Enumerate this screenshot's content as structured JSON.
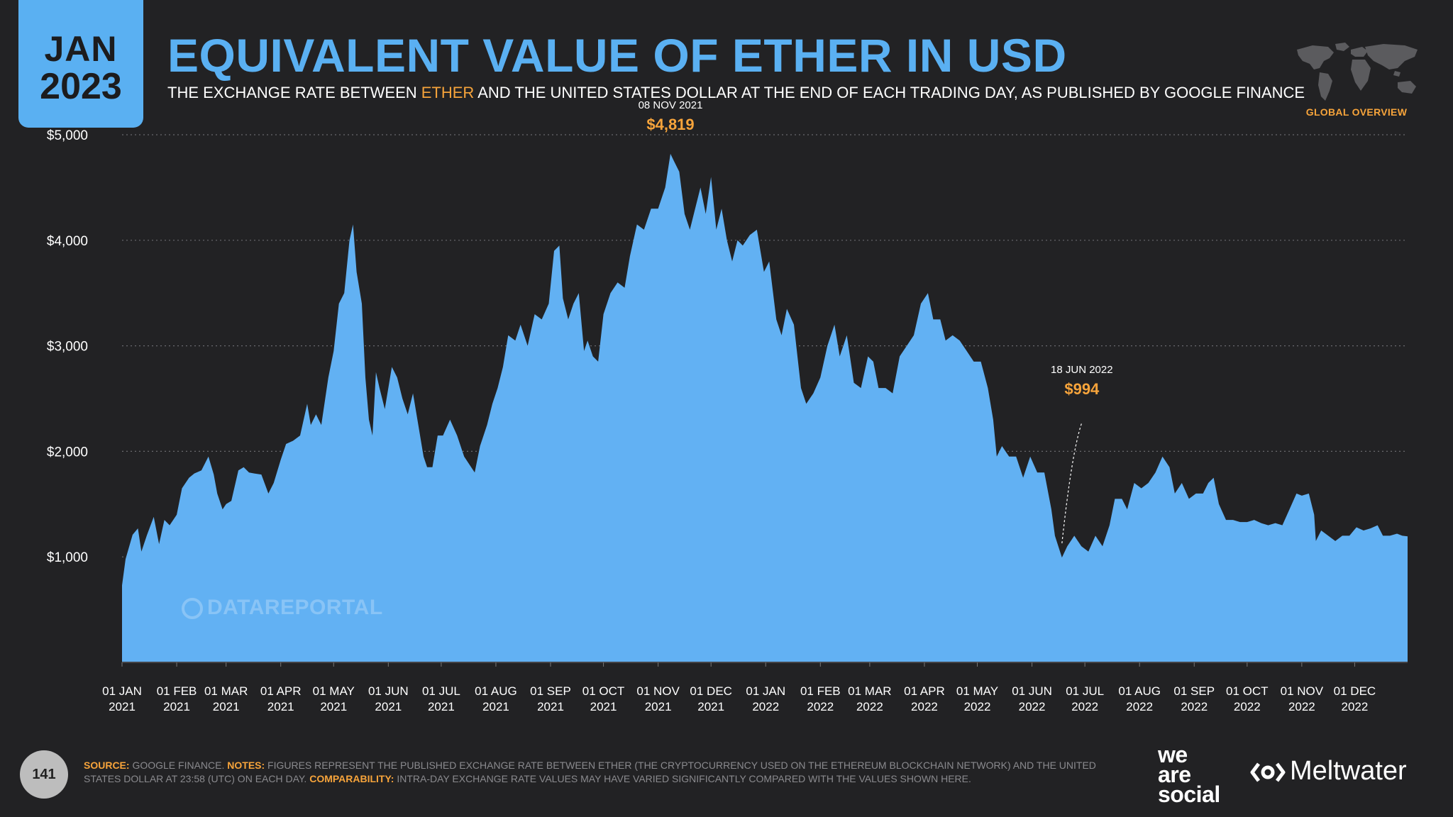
{
  "header": {
    "month": "JAN",
    "year": "2023",
    "title": "EQUIVALENT VALUE OF ETHER IN USD",
    "subtitle_before": "THE EXCHANGE RATE BETWEEN ",
    "subtitle_highlight": "ETHER",
    "subtitle_after": " AND THE UNITED STATES DOLLAR AT THE END OF EACH TRADING DAY, AS PUBLISHED BY GOOGLE FINANCE",
    "region": "GLOBAL OVERVIEW",
    "map_icon": "world-map-icon"
  },
  "watermark": "DATAREPORTAL",
  "footer": {
    "page_number": "141",
    "source_label": "SOURCE:",
    "source_text": " GOOGLE FINANCE. ",
    "notes_label": "NOTES:",
    "notes_text": " FIGURES REPRESENT THE PUBLISHED EXCHANGE RATE BETWEEN ETHER (THE CRYPTOCURRENCY USED ON THE ETHEREUM BLOCKCHAIN NETWORK) AND THE UNITED STATES DOLLAR AT 23:58 (UTC) ON EACH DAY. ",
    "comparability_label": "COMPARABILITY:",
    "comparability_text": " INTRA-DAY EXCHANGE RATE VALUES MAY HAVE VARIED SIGNIFICANTLY COMPARED WITH THE VALUES SHOWN HERE.",
    "brand_1": "we are social",
    "brand_2": "Meltwater"
  },
  "colors": {
    "accent": "#5ab0f2",
    "highlight": "#f7a43b",
    "background": "#222224"
  },
  "chart_data": {
    "type": "area",
    "title": "EQUIVALENT VALUE OF ETHER IN USD",
    "xlabel": "",
    "ylabel": "",
    "ylim": [
      0,
      5000
    ],
    "xlim": [
      "2021-01-01",
      "2022-12-31"
    ],
    "grid": true,
    "legend": "none",
    "y_ticks": [
      {
        "value": 1000,
        "label": "$1,000"
      },
      {
        "value": 2000,
        "label": "$2,000"
      },
      {
        "value": 3000,
        "label": "$3,000"
      },
      {
        "value": 4000,
        "label": "$4,000"
      },
      {
        "value": 5000,
        "label": "$5,000"
      }
    ],
    "x_ticks": [
      {
        "date": "2021-01-01",
        "line1": "01 JAN",
        "line2": "2021"
      },
      {
        "date": "2021-02-01",
        "line1": "01 FEB",
        "line2": "2021"
      },
      {
        "date": "2021-03-01",
        "line1": "01 MAR",
        "line2": "2021"
      },
      {
        "date": "2021-04-01",
        "line1": "01 APR",
        "line2": "2021"
      },
      {
        "date": "2021-05-01",
        "line1": "01 MAY",
        "line2": "2021"
      },
      {
        "date": "2021-06-01",
        "line1": "01 JUN",
        "line2": "2021"
      },
      {
        "date": "2021-07-01",
        "line1": "01 JUL",
        "line2": "2021"
      },
      {
        "date": "2021-08-01",
        "line1": "01 AUG",
        "line2": "2021"
      },
      {
        "date": "2021-09-01",
        "line1": "01 SEP",
        "line2": "2021"
      },
      {
        "date": "2021-10-01",
        "line1": "01 OCT",
        "line2": "2021"
      },
      {
        "date": "2021-11-01",
        "line1": "01 NOV",
        "line2": "2021"
      },
      {
        "date": "2021-12-01",
        "line1": "01 DEC",
        "line2": "2021"
      },
      {
        "date": "2022-01-01",
        "line1": "01 JAN",
        "line2": "2022"
      },
      {
        "date": "2022-02-01",
        "line1": "01 FEB",
        "line2": "2022"
      },
      {
        "date": "2022-03-01",
        "line1": "01 MAR",
        "line2": "2022"
      },
      {
        "date": "2022-04-01",
        "line1": "01 APR",
        "line2": "2022"
      },
      {
        "date": "2022-05-01",
        "line1": "01 MAY",
        "line2": "2022"
      },
      {
        "date": "2022-06-01",
        "line1": "01 JUN",
        "line2": "2022"
      },
      {
        "date": "2022-07-01",
        "line1": "01 JUL",
        "line2": "2022"
      },
      {
        "date": "2022-08-01",
        "line1": "01 AUG",
        "line2": "2022"
      },
      {
        "date": "2022-09-01",
        "line1": "01 SEP",
        "line2": "2022"
      },
      {
        "date": "2022-10-01",
        "line1": "01 OCT",
        "line2": "2022"
      },
      {
        "date": "2022-11-01",
        "line1": "01 NOV",
        "line2": "2022"
      },
      {
        "date": "2022-12-01",
        "line1": "01 DEC",
        "line2": "2022"
      }
    ],
    "series": [
      {
        "color": "#62b1f3",
        "points": [
          [
            "2021-01-01",
            730
          ],
          [
            "2021-01-03",
            980
          ],
          [
            "2021-01-07",
            1210
          ],
          [
            "2021-01-10",
            1270
          ],
          [
            "2021-01-12",
            1050
          ],
          [
            "2021-01-15",
            1200
          ],
          [
            "2021-01-19",
            1380
          ],
          [
            "2021-01-22",
            1120
          ],
          [
            "2021-01-25",
            1350
          ],
          [
            "2021-01-28",
            1300
          ],
          [
            "2021-02-01",
            1400
          ],
          [
            "2021-02-04",
            1650
          ],
          [
            "2021-02-08",
            1750
          ],
          [
            "2021-02-11",
            1790
          ],
          [
            "2021-02-15",
            1820
          ],
          [
            "2021-02-19",
            1950
          ],
          [
            "2021-02-22",
            1780
          ],
          [
            "2021-02-24",
            1600
          ],
          [
            "2021-02-27",
            1450
          ],
          [
            "2021-03-01",
            1500
          ],
          [
            "2021-03-04",
            1530
          ],
          [
            "2021-03-08",
            1820
          ],
          [
            "2021-03-11",
            1850
          ],
          [
            "2021-03-14",
            1800
          ],
          [
            "2021-03-17",
            1790
          ],
          [
            "2021-03-21",
            1780
          ],
          [
            "2021-03-25",
            1600
          ],
          [
            "2021-03-28",
            1700
          ],
          [
            "2021-04-01",
            1920
          ],
          [
            "2021-04-04",
            2070
          ],
          [
            "2021-04-08",
            2100
          ],
          [
            "2021-04-12",
            2150
          ],
          [
            "2021-04-16",
            2450
          ],
          [
            "2021-04-18",
            2250
          ],
          [
            "2021-04-21",
            2350
          ],
          [
            "2021-04-24",
            2250
          ],
          [
            "2021-04-28",
            2700
          ],
          [
            "2021-05-01",
            2950
          ],
          [
            "2021-05-04",
            3400
          ],
          [
            "2021-05-07",
            3500
          ],
          [
            "2021-05-10",
            4000
          ],
          [
            "2021-05-12",
            4150
          ],
          [
            "2021-05-14",
            3700
          ],
          [
            "2021-05-17",
            3400
          ],
          [
            "2021-05-19",
            2700
          ],
          [
            "2021-05-21",
            2300
          ],
          [
            "2021-05-23",
            2150
          ],
          [
            "2021-05-25",
            2750
          ],
          [
            "2021-05-27",
            2600
          ],
          [
            "2021-05-30",
            2400
          ],
          [
            "2021-06-03",
            2800
          ],
          [
            "2021-06-06",
            2700
          ],
          [
            "2021-06-09",
            2500
          ],
          [
            "2021-06-12",
            2350
          ],
          [
            "2021-06-15",
            2550
          ],
          [
            "2021-06-18",
            2250
          ],
          [
            "2021-06-21",
            1950
          ],
          [
            "2021-06-23",
            1850
          ],
          [
            "2021-06-26",
            1850
          ],
          [
            "2021-06-29",
            2150
          ],
          [
            "2021-07-02",
            2150
          ],
          [
            "2021-07-06",
            2300
          ],
          [
            "2021-07-10",
            2150
          ],
          [
            "2021-07-14",
            1950
          ],
          [
            "2021-07-18",
            1850
          ],
          [
            "2021-07-20",
            1800
          ],
          [
            "2021-07-23",
            2050
          ],
          [
            "2021-07-27",
            2250
          ],
          [
            "2021-07-30",
            2450
          ],
          [
            "2021-08-02",
            2600
          ],
          [
            "2021-08-05",
            2800
          ],
          [
            "2021-08-08",
            3100
          ],
          [
            "2021-08-12",
            3050
          ],
          [
            "2021-08-15",
            3200
          ],
          [
            "2021-08-19",
            3000
          ],
          [
            "2021-08-23",
            3300
          ],
          [
            "2021-08-27",
            3250
          ],
          [
            "2021-08-31",
            3400
          ],
          [
            "2021-09-03",
            3900
          ],
          [
            "2021-09-06",
            3950
          ],
          [
            "2021-09-08",
            3450
          ],
          [
            "2021-09-11",
            3250
          ],
          [
            "2021-09-14",
            3400
          ],
          [
            "2021-09-17",
            3500
          ],
          [
            "2021-09-20",
            2950
          ],
          [
            "2021-09-22",
            3050
          ],
          [
            "2021-09-25",
            2900
          ],
          [
            "2021-09-28",
            2850
          ],
          [
            "2021-10-01",
            3300
          ],
          [
            "2021-10-05",
            3500
          ],
          [
            "2021-10-09",
            3600
          ],
          [
            "2021-10-13",
            3550
          ],
          [
            "2021-10-16",
            3850
          ],
          [
            "2021-10-20",
            4150
          ],
          [
            "2021-10-24",
            4100
          ],
          [
            "2021-10-28",
            4300
          ],
          [
            "2021-11-01",
            4300
          ],
          [
            "2021-11-05",
            4500
          ],
          [
            "2021-11-08",
            4819
          ],
          [
            "2021-11-10",
            4750
          ],
          [
            "2021-11-13",
            4650
          ],
          [
            "2021-11-16",
            4250
          ],
          [
            "2021-11-19",
            4100
          ],
          [
            "2021-11-22",
            4300
          ],
          [
            "2021-11-25",
            4500
          ],
          [
            "2021-11-28",
            4250
          ],
          [
            "2021-12-01",
            4600
          ],
          [
            "2021-12-04",
            4100
          ],
          [
            "2021-12-07",
            4300
          ],
          [
            "2021-12-10",
            4000
          ],
          [
            "2021-12-13",
            3800
          ],
          [
            "2021-12-16",
            4000
          ],
          [
            "2021-12-19",
            3950
          ],
          [
            "2021-12-23",
            4050
          ],
          [
            "2021-12-27",
            4100
          ],
          [
            "2021-12-31",
            3700
          ],
          [
            "2022-01-03",
            3800
          ],
          [
            "2022-01-07",
            3250
          ],
          [
            "2022-01-10",
            3100
          ],
          [
            "2022-01-13",
            3350
          ],
          [
            "2022-01-17",
            3200
          ],
          [
            "2022-01-21",
            2600
          ],
          [
            "2022-01-24",
            2450
          ],
          [
            "2022-01-28",
            2550
          ],
          [
            "2022-02-01",
            2700
          ],
          [
            "2022-02-05",
            3000
          ],
          [
            "2022-02-09",
            3200
          ],
          [
            "2022-02-12",
            2900
          ],
          [
            "2022-02-16",
            3100
          ],
          [
            "2022-02-20",
            2650
          ],
          [
            "2022-02-24",
            2600
          ],
          [
            "2022-02-28",
            2900
          ],
          [
            "2022-03-03",
            2850
          ],
          [
            "2022-03-06",
            2600
          ],
          [
            "2022-03-10",
            2600
          ],
          [
            "2022-03-14",
            2550
          ],
          [
            "2022-03-18",
            2900
          ],
          [
            "2022-03-22",
            3000
          ],
          [
            "2022-03-26",
            3100
          ],
          [
            "2022-03-30",
            3400
          ],
          [
            "2022-04-03",
            3500
          ],
          [
            "2022-04-06",
            3250
          ],
          [
            "2022-04-10",
            3250
          ],
          [
            "2022-04-13",
            3050
          ],
          [
            "2022-04-17",
            3100
          ],
          [
            "2022-04-21",
            3050
          ],
          [
            "2022-04-25",
            2950
          ],
          [
            "2022-04-29",
            2850
          ],
          [
            "2022-05-03",
            2850
          ],
          [
            "2022-05-07",
            2600
          ],
          [
            "2022-05-10",
            2300
          ],
          [
            "2022-05-12",
            1950
          ],
          [
            "2022-05-15",
            2050
          ],
          [
            "2022-05-19",
            1950
          ],
          [
            "2022-05-23",
            1950
          ],
          [
            "2022-05-27",
            1750
          ],
          [
            "2022-05-31",
            1950
          ],
          [
            "2022-06-04",
            1800
          ],
          [
            "2022-06-08",
            1800
          ],
          [
            "2022-06-12",
            1450
          ],
          [
            "2022-06-14",
            1200
          ],
          [
            "2022-06-18",
            994
          ],
          [
            "2022-06-21",
            1100
          ],
          [
            "2022-06-25",
            1200
          ],
          [
            "2022-06-29",
            1100
          ],
          [
            "2022-07-03",
            1050
          ],
          [
            "2022-07-07",
            1200
          ],
          [
            "2022-07-11",
            1100
          ],
          [
            "2022-07-15",
            1300
          ],
          [
            "2022-07-18",
            1550
          ],
          [
            "2022-07-22",
            1550
          ],
          [
            "2022-07-25",
            1450
          ],
          [
            "2022-07-29",
            1700
          ],
          [
            "2022-08-02",
            1650
          ],
          [
            "2022-08-06",
            1700
          ],
          [
            "2022-08-10",
            1800
          ],
          [
            "2022-08-14",
            1950
          ],
          [
            "2022-08-18",
            1850
          ],
          [
            "2022-08-21",
            1600
          ],
          [
            "2022-08-25",
            1700
          ],
          [
            "2022-08-29",
            1550
          ],
          [
            "2022-09-02",
            1600
          ],
          [
            "2022-09-06",
            1600
          ],
          [
            "2022-09-09",
            1700
          ],
          [
            "2022-09-12",
            1750
          ],
          [
            "2022-09-15",
            1500
          ],
          [
            "2022-09-19",
            1350
          ],
          [
            "2022-09-23",
            1350
          ],
          [
            "2022-09-27",
            1330
          ],
          [
            "2022-10-01",
            1330
          ],
          [
            "2022-10-05",
            1350
          ],
          [
            "2022-10-09",
            1320
          ],
          [
            "2022-10-13",
            1300
          ],
          [
            "2022-10-17",
            1320
          ],
          [
            "2022-10-21",
            1300
          ],
          [
            "2022-10-25",
            1450
          ],
          [
            "2022-10-29",
            1600
          ],
          [
            "2022-11-01",
            1580
          ],
          [
            "2022-11-05",
            1600
          ],
          [
            "2022-11-08",
            1400
          ],
          [
            "2022-11-09",
            1150
          ],
          [
            "2022-11-12",
            1250
          ],
          [
            "2022-11-16",
            1200
          ],
          [
            "2022-11-20",
            1150
          ],
          [
            "2022-11-24",
            1200
          ],
          [
            "2022-11-28",
            1200
          ],
          [
            "2022-12-02",
            1280
          ],
          [
            "2022-12-06",
            1250
          ],
          [
            "2022-12-10",
            1270
          ],
          [
            "2022-12-14",
            1300
          ],
          [
            "2022-12-17",
            1200
          ],
          [
            "2022-12-21",
            1200
          ],
          [
            "2022-12-25",
            1220
          ],
          [
            "2022-12-28",
            1200
          ],
          [
            "2022-12-31",
            1195
          ]
        ]
      }
    ],
    "annotations": [
      {
        "date": "2021-11-08",
        "date_label": "08 NOV 2021",
        "value_label": "$4,819",
        "value": 4819,
        "leader": false
      },
      {
        "date": "2022-06-18",
        "date_label": "18 JUN 2022",
        "value_label": "$994",
        "value": 994,
        "leader": true
      }
    ]
  }
}
